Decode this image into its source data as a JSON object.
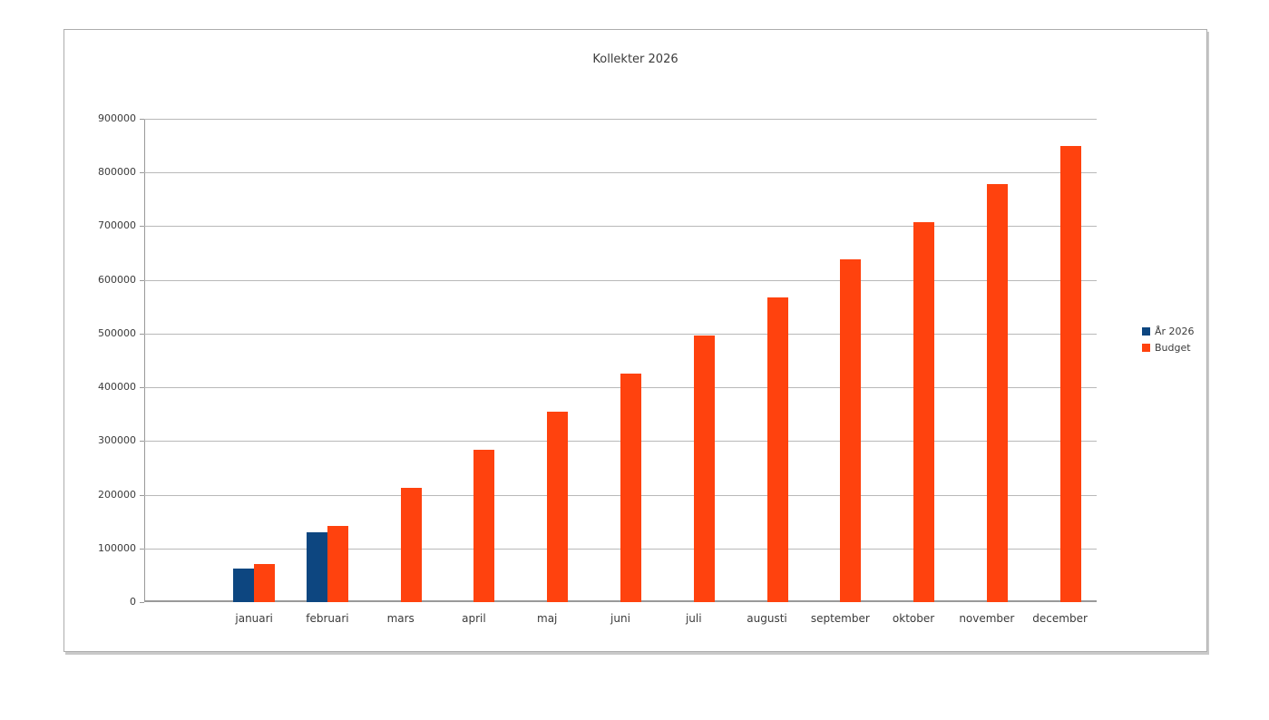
{
  "chart_data": {
    "type": "bar",
    "title": "Kollekter 2026",
    "categories": [
      "januari",
      "februari",
      "mars",
      "april",
      "maj",
      "juni",
      "juli",
      "augusti",
      "september",
      "oktober",
      "november",
      "december"
    ],
    "series": [
      {
        "name": "År 2026",
        "color": "#0d4680",
        "values": [
          62000,
          130000,
          null,
          null,
          null,
          null,
          null,
          null,
          null,
          null,
          null,
          null
        ]
      },
      {
        "name": "Budget",
        "color": "#ff420e",
        "values": [
          70833,
          141667,
          212500,
          283333,
          354167,
          425000,
          495833,
          566667,
          637500,
          708333,
          779167,
          850000
        ]
      }
    ],
    "ylim": [
      0,
      900000
    ],
    "ytick_step": 100000,
    "yticks": [
      0,
      100000,
      200000,
      300000,
      400000,
      500000,
      600000,
      700000,
      800000,
      900000
    ],
    "ytick_label_format": "plain-no-separator",
    "grid": true,
    "legend_position": "right",
    "leading_empty_category_slot": 1,
    "axis_color": "#999999",
    "gridline_color": "#b9b9b9",
    "text_color": "#3b3b3b"
  }
}
